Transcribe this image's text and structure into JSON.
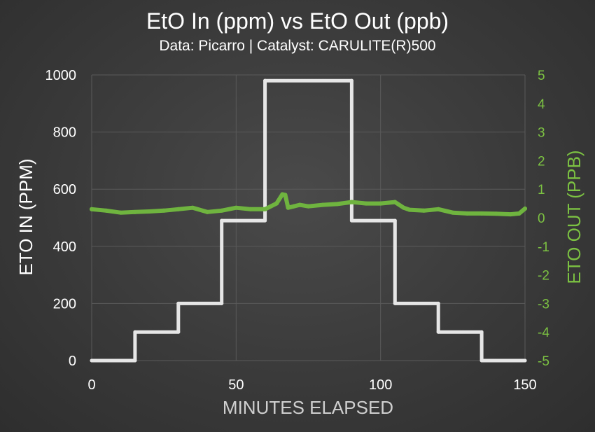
{
  "chart_data": {
    "type": "line",
    "title": "EtO In (ppm) vs EtO Out (ppb)",
    "subtitle": "Data: Picarro | Catalyst: CARULITE(R)500",
    "xlabel": "MINUTES ELAPSED",
    "ylabel_left": "ETO IN (PPM)",
    "ylabel_right": "ETO OUT (PPB)",
    "xlim": [
      0,
      150
    ],
    "ylim_left": [
      0,
      1000
    ],
    "ylim_right": [
      -5,
      5
    ],
    "x_ticks": [
      "0",
      "50",
      "100",
      "150"
    ],
    "y_ticks_left": [
      "0",
      "200",
      "400",
      "600",
      "800",
      "1000"
    ],
    "y_ticks_right": [
      "-5",
      "-4",
      "-3",
      "-2",
      "-1",
      "0",
      "1",
      "2",
      "3",
      "4",
      "5"
    ],
    "grid": true,
    "colors": {
      "eto_in": "#e6e6e6",
      "eto_out": "#6fb43f",
      "right_axis": "#7cc242"
    },
    "series": [
      {
        "axis": "left",
        "x": [
          0,
          15,
          15,
          30,
          30,
          45,
          45,
          60,
          60,
          90,
          90,
          105,
          105,
          120,
          120,
          135,
          135,
          150
        ],
        "y": [
          0,
          0,
          100,
          100,
          200,
          200,
          490,
          490,
          980,
          980,
          490,
          490,
          200,
          200,
          100,
          100,
          0,
          0
        ]
      },
      {
        "axis": "right",
        "x": [
          0,
          5,
          10,
          15,
          20,
          25,
          30,
          35,
          40,
          45,
          50,
          55,
          60,
          62,
          64,
          66,
          67,
          68,
          70,
          72,
          75,
          80,
          85,
          90,
          95,
          100,
          105,
          108,
          110,
          115,
          120,
          125,
          130,
          135,
          140,
          145,
          148,
          150
        ],
        "y": [
          0.3,
          0.25,
          0.18,
          0.2,
          0.22,
          0.25,
          0.3,
          0.35,
          0.2,
          0.25,
          0.35,
          0.3,
          0.3,
          0.4,
          0.5,
          0.82,
          0.8,
          0.35,
          0.4,
          0.45,
          0.4,
          0.45,
          0.48,
          0.55,
          0.5,
          0.5,
          0.55,
          0.35,
          0.28,
          0.25,
          0.3,
          0.18,
          0.15,
          0.15,
          0.14,
          0.12,
          0.15,
          0.32
        ]
      }
    ]
  }
}
